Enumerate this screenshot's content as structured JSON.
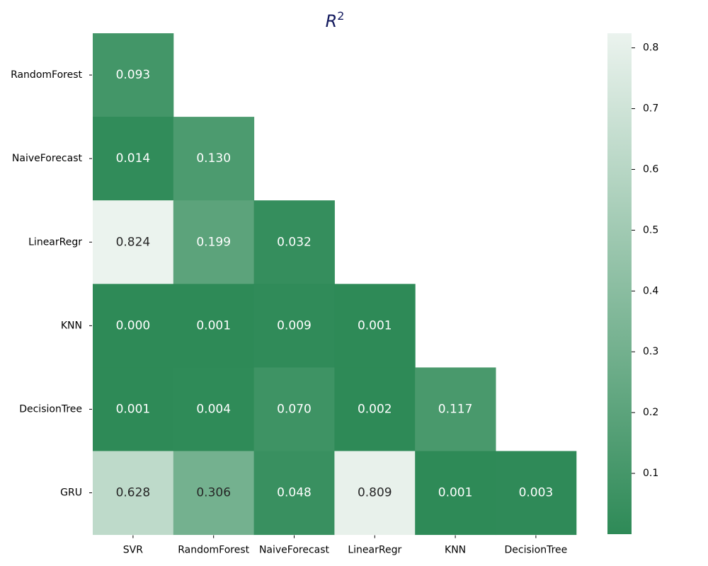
{
  "chart_data": {
    "type": "heatmap",
    "title": "R",
    "title_superscript": "2",
    "colors": {
      "low": "#2e8a57",
      "high": "#ebf3ee",
      "title": "#131a5e",
      "text_dark_cell": "#ffffff",
      "text_light_cell": "#262626"
    },
    "x_categories": [
      "SVR",
      "RandomForest",
      "NaiveForecast",
      "LinearRegr",
      "KNN",
      "DecisionTree"
    ],
    "y_categories": [
      "RandomForest",
      "NaiveForecast",
      "LinearRegr",
      "KNN",
      "DecisionTree",
      "GRU"
    ],
    "matrix": [
      [
        0.093,
        null,
        null,
        null,
        null,
        null
      ],
      [
        0.014,
        0.13,
        null,
        null,
        null,
        null
      ],
      [
        0.824,
        0.199,
        0.032,
        null,
        null,
        null
      ],
      [
        0.0,
        0.001,
        0.009,
        0.001,
        null,
        null
      ],
      [
        0.001,
        0.004,
        0.07,
        0.002,
        0.117,
        null
      ],
      [
        0.628,
        0.306,
        0.048,
        0.809,
        0.001,
        0.003
      ]
    ],
    "cell_labels": [
      [
        "0.093",
        "",
        "",
        "",
        "",
        ""
      ],
      [
        "0.014",
        "0.130",
        "",
        "",
        "",
        ""
      ],
      [
        "0.824",
        "0.199",
        "0.032",
        "",
        "",
        ""
      ],
      [
        "0.000",
        "0.001",
        "0.009",
        "0.001",
        "",
        ""
      ],
      [
        "0.001",
        "0.004",
        "0.070",
        "0.002",
        "0.117",
        ""
      ],
      [
        "0.628",
        "0.306",
        "0.048",
        "0.809",
        "0.001",
        "0.003"
      ]
    ],
    "colorbar": {
      "vmin": 0.0,
      "vmax": 0.824,
      "ticks": [
        0.1,
        0.2,
        0.3,
        0.4,
        0.5,
        0.6,
        0.7,
        0.8
      ],
      "tick_labels": [
        "0.1",
        "0.2",
        "0.3",
        "0.4",
        "0.5",
        "0.6",
        "0.7",
        "0.8"
      ]
    }
  }
}
